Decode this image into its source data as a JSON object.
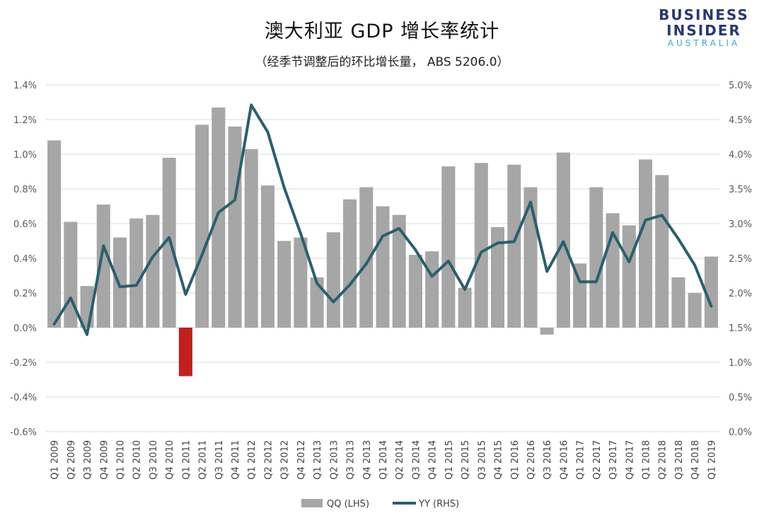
{
  "title": "澳大利亚 GDP 增长率统计",
  "subtitle": "（经季节调整后的环比增长量， ABS 5206.0）",
  "logo": {
    "line1": "BUSINESS",
    "line2": "INSIDER",
    "line3": "AUSTRALIA"
  },
  "colors": {
    "bar": "#a6a6a6",
    "bar_negative": "#c0201e",
    "line": "#2b5f6e",
    "grid": "#d9d9d9"
  },
  "chart_data": {
    "type": "bar",
    "title": "澳大利亚 GDP 增长率统计",
    "subtitle": "（经季节调整后的环比增长量， ABS 5206.0）",
    "categories": [
      "Q1 2009",
      "Q2 2009",
      "Q3 2009",
      "Q4 2009",
      "Q1 2010",
      "Q2 2010",
      "Q3 2010",
      "Q4 2010",
      "Q1 2011",
      "Q2 2011",
      "Q3 2011",
      "Q4 2011",
      "Q1 2012",
      "Q2 2012",
      "Q3 2012",
      "Q4 2012",
      "Q1 2013",
      "Q2 2013",
      "Q3 2013",
      "Q4 2013",
      "Q1 2014",
      "Q2 2014",
      "Q3 2014",
      "Q4 2014",
      "Q1 2015",
      "Q2 2015",
      "Q3 2015",
      "Q4 2015",
      "Q1 2016",
      "Q2 2016",
      "Q3 2016",
      "Q4 2016",
      "Q1 2017",
      "Q2 2017",
      "Q3 2017",
      "Q4 2017",
      "Q1 2018",
      "Q2 2018",
      "Q3 2018",
      "Q4 2018",
      "Q1 2019"
    ],
    "series": [
      {
        "name": "QQ (LHS)",
        "type": "bar",
        "axis": "left",
        "values": [
          1.08,
          0.61,
          0.24,
          0.71,
          0.52,
          0.63,
          0.65,
          0.98,
          -0.28,
          1.17,
          1.27,
          1.16,
          1.03,
          0.82,
          0.5,
          0.52,
          0.29,
          0.55,
          0.74,
          0.81,
          0.7,
          0.65,
          0.42,
          0.44,
          0.93,
          0.23,
          0.95,
          0.58,
          0.94,
          0.81,
          -0.04,
          1.01,
          0.37,
          0.81,
          0.66,
          0.59,
          0.97,
          0.88,
          0.29,
          0.2,
          0.41
        ]
      },
      {
        "name": "YY (RHS)",
        "type": "line",
        "axis": "right",
        "values": [
          1.55,
          1.93,
          1.4,
          2.68,
          2.09,
          2.11,
          2.52,
          2.8,
          1.98,
          2.55,
          3.16,
          3.34,
          4.71,
          4.32,
          3.52,
          2.86,
          2.14,
          1.87,
          2.12,
          2.42,
          2.82,
          2.93,
          2.62,
          2.24,
          2.46,
          2.05,
          2.59,
          2.72,
          2.74,
          3.31,
          2.31,
          2.74,
          2.16,
          2.16,
          2.87,
          2.45,
          3.05,
          3.12,
          2.78,
          2.4,
          1.81
        ]
      }
    ],
    "y_left": {
      "min": -0.6,
      "max": 1.4,
      "ticks": [
        "1.4%",
        "1.2%",
        "1.0%",
        "0.8%",
        "0.6%",
        "0.4%",
        "0.2%",
        "0.0%",
        "-0.2%",
        "-0.4%",
        "-0.6%"
      ]
    },
    "y_right": {
      "min": 0.0,
      "max": 5.0,
      "ticks": [
        "5.0%",
        "4.5%",
        "4.0%",
        "3.5%",
        "3.0%",
        "2.5%",
        "2.0%",
        "1.5%",
        "1.0%",
        "0.5%",
        "0.0%"
      ]
    },
    "grid": true,
    "legend": {
      "placement": "bottom",
      "items": [
        "QQ (LHS)",
        "YY (RHS)"
      ]
    }
  }
}
